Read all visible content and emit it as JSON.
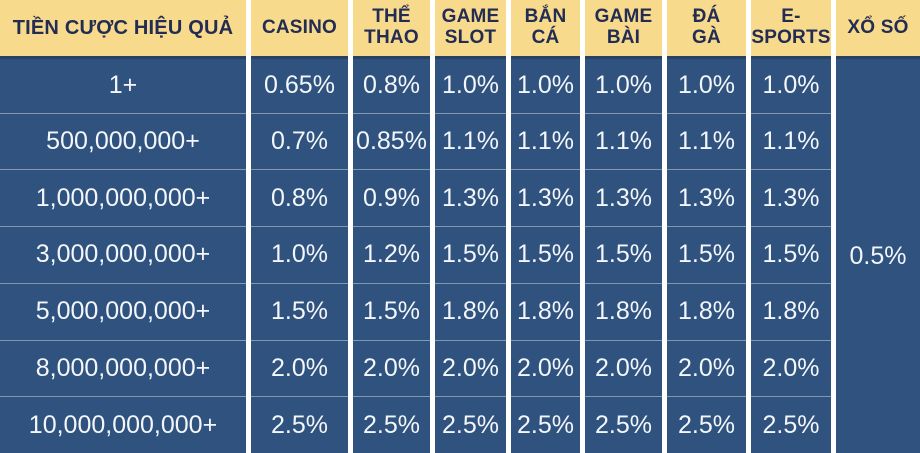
{
  "chart_data": {
    "type": "table",
    "title": "TIỀN CƯỢC HIỆU QUẢ",
    "columns": [
      "TIỀN CƯỢC HIỆU QUẢ",
      "CASINO",
      "THỂ THAO",
      "GAME SLOT",
      "BẮN CÁ",
      "GAME BÀI",
      "ĐÁ GÀ",
      "E-SPORTS",
      "XỔ SỐ"
    ],
    "header_display": [
      "TIỀN CƯỢC HIỆU QUẢ",
      "CASINO",
      "THỂ\nTHAO",
      "GAME\nSLOT",
      "BẮN\nCÁ",
      "GAME\nBÀI",
      "ĐÁ\nGÀ",
      "E-\nSPORTS",
      "XỔ SỐ"
    ],
    "rows": [
      {
        "tier": "1+",
        "rates": [
          "0.65%",
          "0.8%",
          "1.0%",
          "1.0%",
          "1.0%",
          "1.0%",
          "1.0%"
        ]
      },
      {
        "tier": "500,000,000+",
        "rates": [
          "0.7%",
          "0.85%",
          "1.1%",
          "1.1%",
          "1.1%",
          "1.1%",
          "1.1%"
        ]
      },
      {
        "tier": "1,000,000,000+",
        "rates": [
          "0.8%",
          "0.9%",
          "1.3%",
          "1.3%",
          "1.3%",
          "1.3%",
          "1.3%"
        ]
      },
      {
        "tier": "3,000,000,000+",
        "rates": [
          "1.0%",
          "1.2%",
          "1.5%",
          "1.5%",
          "1.5%",
          "1.5%",
          "1.5%"
        ]
      },
      {
        "tier": "5,000,000,000+",
        "rates": [
          "1.5%",
          "1.5%",
          "1.8%",
          "1.8%",
          "1.8%",
          "1.8%",
          "1.8%"
        ]
      },
      {
        "tier": "8,000,000,000+",
        "rates": [
          "2.0%",
          "2.0%",
          "2.0%",
          "2.0%",
          "2.0%",
          "2.0%",
          "2.0%"
        ]
      },
      {
        "tier": "10,000,000,000+",
        "rates": [
          "2.5%",
          "2.5%",
          "2.5%",
          "2.5%",
          "2.5%",
          "2.5%",
          "2.5%"
        ]
      }
    ],
    "merged_cell": {
      "column": "XỔ SỐ",
      "value": "0.5%",
      "spans_all_rows": true
    },
    "layout": {
      "grid": "off",
      "legend": "none"
    }
  },
  "colors": {
    "header_bg": "#f8da8c",
    "header_text": "#232c52",
    "body_bg": "#2f527e",
    "body_text": "#f3f6fa",
    "grid_gap": "#ffffff",
    "row_divider": "#8197b2",
    "header_shadow": "#2a4166"
  }
}
